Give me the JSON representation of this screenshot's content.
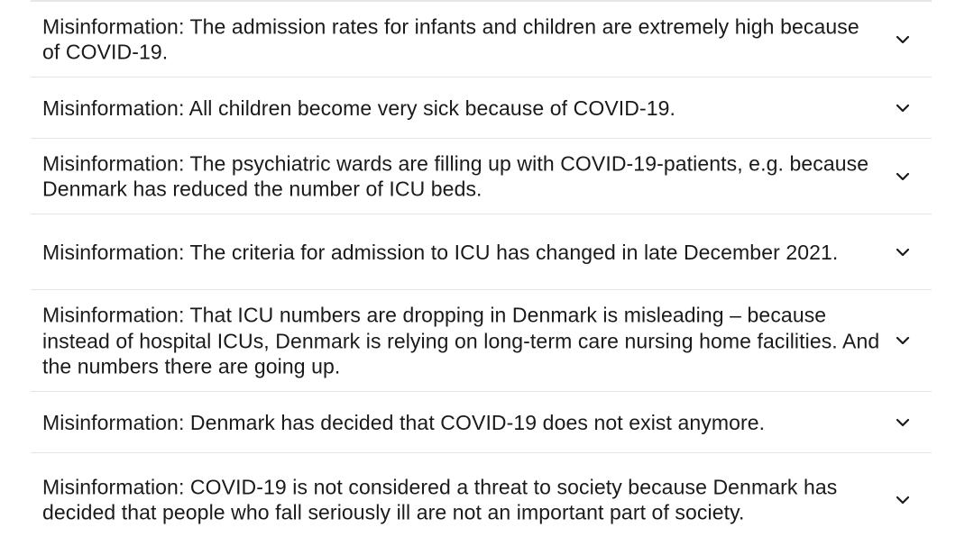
{
  "accordion": {
    "items": [
      {
        "label": "Misinformation: The admission rates for infants and children are extremely high because of COVID-19.",
        "expanded": false,
        "icon": "chevron-down-icon"
      },
      {
        "label": "Misinformation: All children become very sick because of COVID-19.",
        "expanded": false,
        "icon": "chevron-down-icon"
      },
      {
        "label": "Misinformation: The psychiatric wards are filling up with COVID-19-patients, e.g. because Denmark has reduced the number of ICU beds.",
        "expanded": false,
        "icon": "chevron-down-icon"
      },
      {
        "label": "Misinformation: The criteria for admission to ICU has changed in late December 2021.",
        "expanded": false,
        "icon": "chevron-down-icon"
      },
      {
        "label": "Misinformation: That ICU numbers are dropping in Denmark is misleading – because instead of hospital ICUs, Denmark is relying on long-term care nursing home facilities. And the numbers there are going up.",
        "expanded": false,
        "icon": "chevron-down-icon"
      },
      {
        "label": "Misinformation: Denmark has decided that COVID-19 does not exist anymore.",
        "expanded": false,
        "icon": "chevron-down-icon"
      },
      {
        "label": "Misinformation: COVID-19 is not considered a threat to society because Denmark has decided that people who fall seriously ill are not an important part of society.",
        "expanded": false,
        "icon": "chevron-down-icon"
      }
    ]
  },
  "colors": {
    "text": "#1a1a1a",
    "divider": "#e4e4e4",
    "background": "#ffffff"
  }
}
